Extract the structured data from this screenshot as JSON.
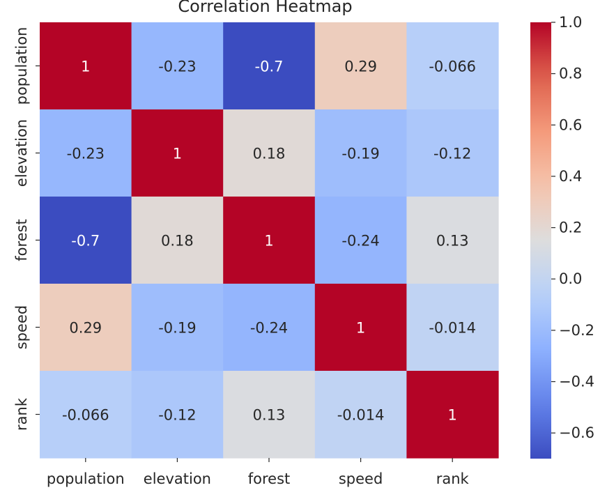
{
  "chart_data": {
    "type": "heatmap",
    "title": "Correlation Heatmap",
    "rows": [
      "population",
      "elevation",
      "forest",
      "speed",
      "rank"
    ],
    "columns": [
      "population",
      "elevation",
      "forest",
      "speed",
      "rank"
    ],
    "values": [
      [
        1,
        -0.23,
        -0.7,
        0.29,
        -0.066
      ],
      [
        -0.23,
        1,
        0.18,
        -0.19,
        -0.12
      ],
      [
        -0.7,
        0.18,
        1,
        -0.24,
        0.13
      ],
      [
        0.29,
        -0.19,
        -0.24,
        1,
        -0.014
      ],
      [
        -0.066,
        -0.12,
        0.13,
        -0.014,
        1
      ]
    ],
    "value_labels": [
      [
        "1",
        "-0.23",
        "-0.7",
        "0.29",
        "-0.066"
      ],
      [
        "-0.23",
        "1",
        "0.18",
        "-0.19",
        "-0.12"
      ],
      [
        "-0.7",
        "0.18",
        "1",
        "-0.24",
        "0.13"
      ],
      [
        "0.29",
        "-0.19",
        "-0.24",
        "1",
        "-0.014"
      ],
      [
        "-0.066",
        "-0.12",
        "0.13",
        "-0.014",
        "1"
      ]
    ],
    "colormap": "coolwarm",
    "color_range": [
      -0.7,
      1.0
    ],
    "colorbar": {
      "ticks": [
        1.0,
        0.8,
        0.6,
        0.4,
        0.2,
        0.0,
        -0.2,
        -0.4,
        -0.6
      ],
      "tick_labels": [
        "1.0",
        "0.8",
        "0.6",
        "0.4",
        "0.2",
        "0.0",
        "−0.2",
        "−0.4",
        "−0.6"
      ],
      "position": "right"
    }
  }
}
